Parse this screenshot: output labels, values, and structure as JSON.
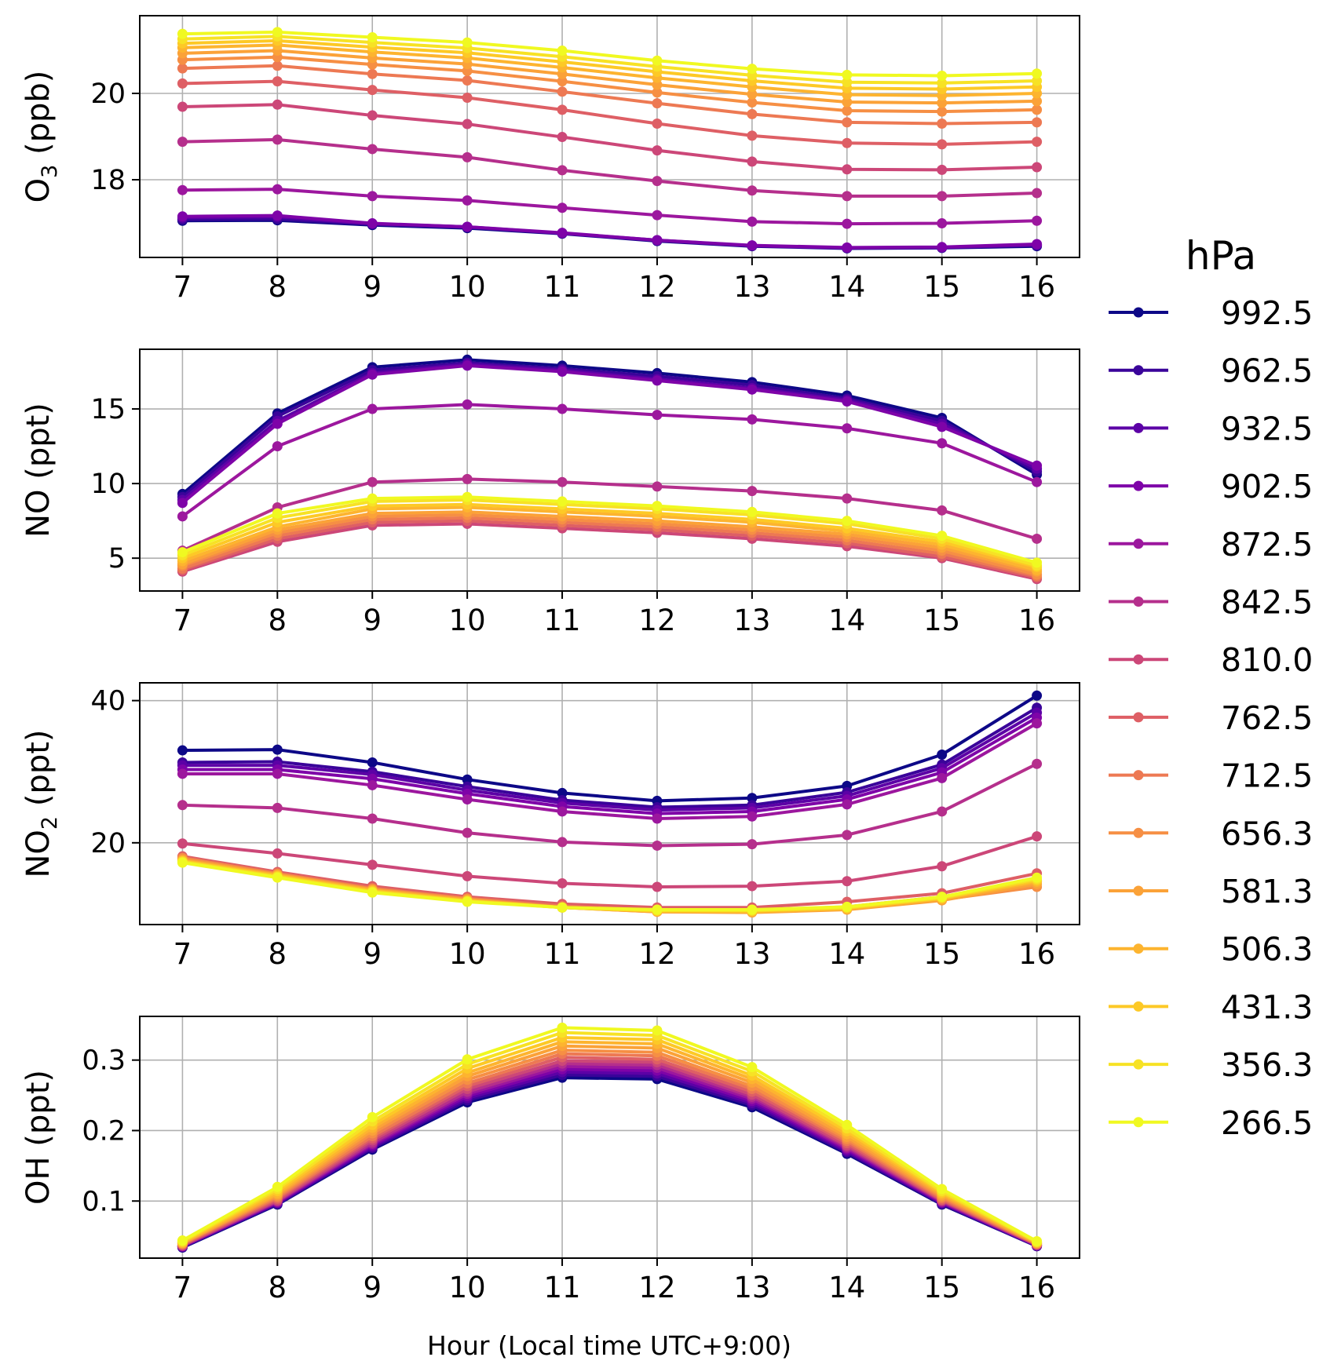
{
  "figure": {
    "legend_title": "hPa",
    "xlabel": "Hour (Local time UTC+9:00)"
  },
  "chart_data": [
    {
      "type": "line",
      "id": "o3",
      "ylabel_main": "O",
      "ylabel_sub": "3",
      "ylabel_tail": " (ppb)",
      "x": [
        7,
        8,
        9,
        10,
        11,
        12,
        13,
        14,
        15,
        16
      ],
      "ylim": [
        16.2,
        21.8
      ],
      "yticks": [
        18,
        20
      ],
      "ytick_labels": [
        "18",
        "20"
      ],
      "grid": true,
      "legend_position": "right",
      "series": [
        {
          "name": "992.5",
          "color": "#0d0887",
          "values": [
            17.05,
            17.06,
            16.95,
            16.88,
            16.75,
            16.58,
            16.46,
            16.41,
            16.42,
            16.46
          ]
        },
        {
          "name": "962.5",
          "color": "#3a049a",
          "values": [
            17.08,
            17.09,
            16.97,
            16.9,
            16.76,
            16.59,
            16.47,
            16.42,
            16.43,
            16.48
          ]
        },
        {
          "name": "932.5",
          "color": "#5c01a6",
          "values": [
            17.12,
            17.14,
            16.98,
            16.91,
            16.76,
            16.6,
            16.47,
            16.42,
            16.43,
            16.49
          ]
        },
        {
          "name": "902.5",
          "color": "#7e03a8",
          "values": [
            17.15,
            17.17,
            16.99,
            16.91,
            16.77,
            16.6,
            16.48,
            16.43,
            16.44,
            16.51
          ]
        },
        {
          "name": "872.5",
          "color": "#9c179e",
          "values": [
            17.76,
            17.78,
            17.62,
            17.52,
            17.35,
            17.18,
            17.03,
            16.98,
            16.99,
            17.05
          ]
        },
        {
          "name": "842.5",
          "color": "#b52f8c",
          "values": [
            18.88,
            18.93,
            18.71,
            18.52,
            18.22,
            17.97,
            17.75,
            17.62,
            17.62,
            17.69
          ]
        },
        {
          "name": "810.0",
          "color": "#cc4778",
          "values": [
            19.69,
            19.74,
            19.49,
            19.29,
            18.99,
            18.68,
            18.42,
            18.24,
            18.23,
            18.29
          ]
        },
        {
          "name": "762.5",
          "color": "#de5f65",
          "values": [
            20.23,
            20.28,
            20.08,
            19.9,
            19.62,
            19.3,
            19.02,
            18.85,
            18.82,
            18.88
          ]
        },
        {
          "name": "712.5",
          "color": "#ed7953",
          "values": [
            20.58,
            20.64,
            20.45,
            20.3,
            20.04,
            19.77,
            19.52,
            19.33,
            19.3,
            19.33
          ]
        },
        {
          "name": "656.3",
          "color": "#f68f44",
          "values": [
            20.78,
            20.84,
            20.67,
            20.52,
            20.28,
            20.02,
            19.79,
            19.6,
            19.58,
            19.62
          ]
        },
        {
          "name": "581.3",
          "color": "#fba238",
          "values": [
            20.93,
            20.99,
            20.82,
            20.68,
            20.45,
            20.2,
            19.98,
            19.8,
            19.78,
            19.82
          ]
        },
        {
          "name": "506.3",
          "color": "#fdb42f",
          "values": [
            21.06,
            21.12,
            20.96,
            20.82,
            20.6,
            20.36,
            20.15,
            19.97,
            19.95,
            20.0
          ]
        },
        {
          "name": "431.3",
          "color": "#fdc926",
          "values": [
            21.16,
            21.22,
            21.07,
            20.94,
            20.73,
            20.5,
            20.29,
            20.12,
            20.1,
            20.15
          ]
        },
        {
          "name": "356.3",
          "color": "#f7e225",
          "values": [
            21.26,
            21.32,
            21.18,
            21.05,
            20.85,
            20.62,
            20.42,
            20.26,
            20.24,
            20.29
          ]
        },
        {
          "name": "266.5",
          "color": "#f0f921",
          "values": [
            21.38,
            21.42,
            21.3,
            21.18,
            20.99,
            20.76,
            20.57,
            20.43,
            20.41,
            20.46
          ]
        }
      ]
    },
    {
      "type": "line",
      "id": "no",
      "ylabel_main": "NO (ppt)",
      "ylabel_sub": "",
      "ylabel_tail": "",
      "x": [
        7,
        8,
        9,
        10,
        11,
        12,
        13,
        14,
        15,
        16
      ],
      "ylim": [
        2.8,
        19.0
      ],
      "yticks": [
        5,
        10,
        15
      ],
      "ytick_labels": [
        "5",
        "10",
        "15"
      ],
      "grid": true,
      "series": [
        {
          "name": "992.5",
          "color": "#0d0887",
          "values": [
            9.3,
            14.7,
            17.8,
            18.3,
            17.9,
            17.4,
            16.8,
            15.9,
            14.4,
            10.6
          ]
        },
        {
          "name": "962.5",
          "color": "#3a049a",
          "values": [
            9.1,
            14.5,
            17.6,
            18.1,
            17.7,
            17.2,
            16.6,
            15.7,
            14.2,
            10.8
          ]
        },
        {
          "name": "932.5",
          "color": "#5c01a6",
          "values": [
            8.9,
            14.2,
            17.4,
            18.0,
            17.6,
            17.0,
            16.4,
            15.6,
            14.0,
            11.0
          ]
        },
        {
          "name": "902.5",
          "color": "#7e03a8",
          "values": [
            8.7,
            14.0,
            17.3,
            17.9,
            17.5,
            16.9,
            16.3,
            15.5,
            13.8,
            11.2
          ]
        },
        {
          "name": "872.5",
          "color": "#9c179e",
          "values": [
            7.8,
            12.5,
            15.0,
            15.3,
            15.0,
            14.6,
            14.3,
            13.7,
            12.7,
            10.1
          ]
        },
        {
          "name": "842.5",
          "color": "#b52f8c",
          "values": [
            5.5,
            8.4,
            10.1,
            10.3,
            10.1,
            9.8,
            9.5,
            9.0,
            8.2,
            6.3
          ]
        },
        {
          "name": "810.0",
          "color": "#cc4778",
          "values": [
            4.1,
            6.1,
            7.2,
            7.3,
            7.0,
            6.7,
            6.3,
            5.8,
            5.0,
            3.6
          ]
        },
        {
          "name": "762.5",
          "color": "#de5f65",
          "values": [
            4.2,
            6.3,
            7.4,
            7.5,
            7.2,
            6.9,
            6.5,
            6.0,
            5.1,
            3.7
          ]
        },
        {
          "name": "712.5",
          "color": "#ed7953",
          "values": [
            4.3,
            6.5,
            7.6,
            7.7,
            7.4,
            7.1,
            6.7,
            6.2,
            5.3,
            3.8
          ]
        },
        {
          "name": "656.3",
          "color": "#f68f44",
          "values": [
            4.5,
            6.7,
            7.8,
            7.9,
            7.6,
            7.3,
            6.9,
            6.4,
            5.5,
            3.9
          ]
        },
        {
          "name": "581.3",
          "color": "#fba238",
          "values": [
            4.6,
            6.9,
            8.0,
            8.1,
            7.8,
            7.5,
            7.1,
            6.6,
            5.7,
            4.1
          ]
        },
        {
          "name": "506.3",
          "color": "#fdb42f",
          "values": [
            4.8,
            7.1,
            8.3,
            8.4,
            8.1,
            7.8,
            7.4,
            6.8,
            5.9,
            4.2
          ]
        },
        {
          "name": "431.3",
          "color": "#fdc926",
          "values": [
            5.0,
            7.4,
            8.5,
            8.6,
            8.3,
            8.0,
            7.6,
            7.0,
            6.1,
            4.4
          ]
        },
        {
          "name": "356.3",
          "color": "#f7e225",
          "values": [
            5.2,
            7.7,
            8.8,
            8.9,
            8.6,
            8.3,
            7.9,
            7.3,
            6.3,
            4.5
          ]
        },
        {
          "name": "266.5",
          "color": "#f0f921",
          "values": [
            5.4,
            8.0,
            9.0,
            9.1,
            8.8,
            8.5,
            8.1,
            7.5,
            6.5,
            4.7
          ]
        }
      ]
    },
    {
      "type": "line",
      "id": "no2",
      "ylabel_main": "NO",
      "ylabel_sub": "2",
      "ylabel_tail": " (ppt)",
      "x": [
        7,
        8,
        9,
        10,
        11,
        12,
        13,
        14,
        15,
        16
      ],
      "ylim": [
        8.5,
        42.5
      ],
      "yticks": [
        20,
        40
      ],
      "ytick_labels": [
        "20",
        "40"
      ],
      "grid": true,
      "series": [
        {
          "name": "992.5",
          "color": "#0d0887",
          "values": [
            33.0,
            33.1,
            31.3,
            28.9,
            27.0,
            25.9,
            26.3,
            28.0,
            32.4,
            40.7
          ]
        },
        {
          "name": "962.5",
          "color": "#3a049a",
          "values": [
            31.3,
            31.4,
            30.0,
            27.9,
            26.0,
            25.0,
            25.3,
            27.1,
            31.0,
            39.0
          ]
        },
        {
          "name": "932.5",
          "color": "#5c01a6",
          "values": [
            30.9,
            30.9,
            29.6,
            27.4,
            25.6,
            24.6,
            24.9,
            26.6,
            30.5,
            38.3
          ]
        },
        {
          "name": "902.5",
          "color": "#7e03a8",
          "values": [
            30.3,
            30.3,
            29.0,
            26.9,
            25.1,
            24.1,
            24.4,
            26.1,
            29.9,
            37.6
          ]
        },
        {
          "name": "872.5",
          "color": "#9c179e",
          "values": [
            29.7,
            29.7,
            28.1,
            26.1,
            24.4,
            23.4,
            23.7,
            25.4,
            29.1,
            36.8
          ]
        },
        {
          "name": "842.5",
          "color": "#b52f8c",
          "values": [
            25.3,
            24.9,
            23.4,
            21.4,
            20.1,
            19.6,
            19.8,
            21.1,
            24.4,
            31.1
          ]
        },
        {
          "name": "810.0",
          "color": "#cc4778",
          "values": [
            19.9,
            18.5,
            16.9,
            15.3,
            14.3,
            13.8,
            13.9,
            14.6,
            16.7,
            20.9
          ]
        },
        {
          "name": "762.5",
          "color": "#de5f65",
          "values": [
            18.1,
            15.9,
            13.9,
            12.4,
            11.4,
            10.9,
            10.9,
            11.7,
            12.9,
            15.7
          ]
        },
        {
          "name": "712.5",
          "color": "#ed7953",
          "values": [
            17.9,
            15.7,
            13.6,
            12.2,
            11.1,
            10.5,
            10.5,
            11.0,
            12.4,
            14.7
          ]
        },
        {
          "name": "656.3",
          "color": "#f68f44",
          "values": [
            17.8,
            15.6,
            13.5,
            12.1,
            10.9,
            10.3,
            10.3,
            10.7,
            12.0,
            13.8
          ]
        },
        {
          "name": "581.3",
          "color": "#fba238",
          "values": [
            17.6,
            15.5,
            13.4,
            12.0,
            10.9,
            10.3,
            10.2,
            10.6,
            11.9,
            14.2
          ]
        },
        {
          "name": "506.3",
          "color": "#fdb42f",
          "values": [
            17.5,
            15.4,
            13.3,
            11.9,
            10.9,
            10.4,
            10.3,
            10.7,
            12.1,
            14.5
          ]
        },
        {
          "name": "431.3",
          "color": "#fdc926",
          "values": [
            17.4,
            15.3,
            13.2,
            11.8,
            10.9,
            10.4,
            10.4,
            10.8,
            12.2,
            14.7
          ]
        },
        {
          "name": "356.3",
          "color": "#f7e225",
          "values": [
            17.3,
            15.2,
            13.1,
            11.8,
            10.9,
            10.5,
            10.5,
            10.9,
            12.3,
            14.9
          ]
        },
        {
          "name": "266.5",
          "color": "#f0f921",
          "values": [
            17.2,
            15.1,
            13.0,
            11.7,
            10.9,
            10.6,
            10.6,
            11.0,
            12.4,
            15.1
          ]
        }
      ]
    },
    {
      "type": "line",
      "id": "oh",
      "ylabel_main": "OH (ppt)",
      "ylabel_sub": "",
      "ylabel_tail": "",
      "x": [
        7,
        8,
        9,
        10,
        11,
        12,
        13,
        14,
        15,
        16
      ],
      "ylim": [
        0.019,
        0.362
      ],
      "yticks": [
        0.1,
        0.2,
        0.3
      ],
      "ytick_labels": [
        "0.1",
        "0.2",
        "0.3"
      ],
      "grid": true,
      "series": [
        {
          "name": "992.5",
          "color": "#0d0887",
          "values": [
            0.034,
            0.095,
            0.173,
            0.24,
            0.275,
            0.273,
            0.233,
            0.167,
            0.095,
            0.036
          ]
        },
        {
          "name": "962.5",
          "color": "#3a049a",
          "values": [
            0.035,
            0.096,
            0.175,
            0.243,
            0.279,
            0.277,
            0.236,
            0.169,
            0.096,
            0.036
          ]
        },
        {
          "name": "932.5",
          "color": "#5c01a6",
          "values": [
            0.035,
            0.097,
            0.177,
            0.246,
            0.283,
            0.281,
            0.239,
            0.171,
            0.097,
            0.037
          ]
        },
        {
          "name": "902.5",
          "color": "#7e03a8",
          "values": [
            0.036,
            0.098,
            0.179,
            0.249,
            0.287,
            0.285,
            0.242,
            0.173,
            0.098,
            0.037
          ]
        },
        {
          "name": "872.5",
          "color": "#9c179e",
          "values": [
            0.036,
            0.099,
            0.181,
            0.252,
            0.291,
            0.289,
            0.245,
            0.175,
            0.099,
            0.037
          ]
        },
        {
          "name": "842.5",
          "color": "#b52f8c",
          "values": [
            0.037,
            0.1,
            0.183,
            0.255,
            0.295,
            0.293,
            0.248,
            0.177,
            0.1,
            0.038
          ]
        },
        {
          "name": "810.0",
          "color": "#cc4778",
          "values": [
            0.037,
            0.101,
            0.186,
            0.259,
            0.299,
            0.297,
            0.251,
            0.179,
            0.101,
            0.038
          ]
        },
        {
          "name": "762.5",
          "color": "#de5f65",
          "values": [
            0.038,
            0.103,
            0.189,
            0.263,
            0.304,
            0.301,
            0.255,
            0.182,
            0.102,
            0.039
          ]
        },
        {
          "name": "712.5",
          "color": "#ed7953",
          "values": [
            0.039,
            0.105,
            0.192,
            0.267,
            0.309,
            0.306,
            0.259,
            0.185,
            0.104,
            0.039
          ]
        },
        {
          "name": "656.3",
          "color": "#f68f44",
          "values": [
            0.04,
            0.107,
            0.196,
            0.272,
            0.314,
            0.311,
            0.263,
            0.188,
            0.106,
            0.04
          ]
        },
        {
          "name": "581.3",
          "color": "#fba238",
          "values": [
            0.04,
            0.109,
            0.2,
            0.277,
            0.32,
            0.317,
            0.268,
            0.191,
            0.108,
            0.04
          ]
        },
        {
          "name": "506.3",
          "color": "#fdb42f",
          "values": [
            0.041,
            0.111,
            0.204,
            0.282,
            0.326,
            0.323,
            0.273,
            0.195,
            0.11,
            0.041
          ]
        },
        {
          "name": "431.3",
          "color": "#fdc926",
          "values": [
            0.042,
            0.114,
            0.208,
            0.288,
            0.332,
            0.329,
            0.278,
            0.199,
            0.112,
            0.042
          ]
        },
        {
          "name": "356.3",
          "color": "#f7e225",
          "values": [
            0.043,
            0.117,
            0.213,
            0.294,
            0.339,
            0.335,
            0.284,
            0.203,
            0.114,
            0.042
          ]
        },
        {
          "name": "266.5",
          "color": "#f0f921",
          "values": [
            0.044,
            0.12,
            0.219,
            0.301,
            0.346,
            0.342,
            0.29,
            0.208,
            0.117,
            0.043
          ]
        }
      ]
    }
  ]
}
